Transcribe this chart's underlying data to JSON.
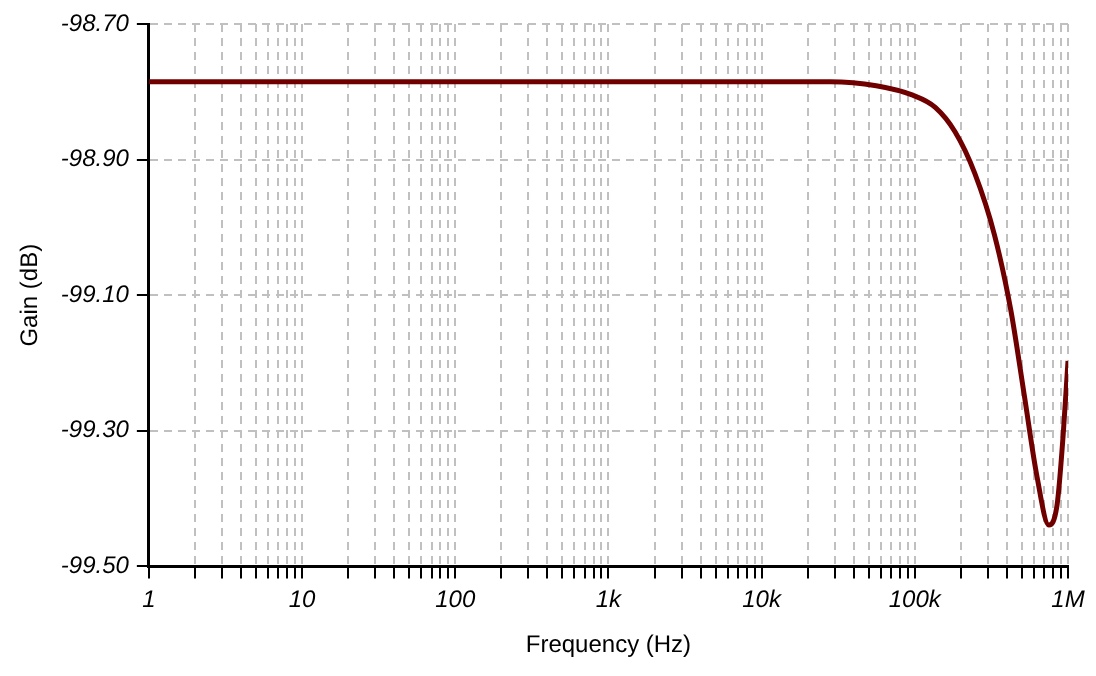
{
  "chart_data": {
    "type": "line",
    "xlabel": "Frequency (Hz)",
    "ylabel": "Gain (dB)",
    "log": "x",
    "grid": true,
    "legend": false,
    "marker": "none",
    "line_style": "solid",
    "x": [
      1,
      10,
      100,
      1000,
      10000,
      28000,
      56000,
      97000,
      136000,
      183000,
      246000,
      331000,
      424000,
      517000,
      628000,
      750000,
      850000,
      930000,
      1000000
    ],
    "series": [
      {
        "color": "#700000",
        "values": [
          -98.785,
          -98.785,
          -98.785,
          -98.785,
          -98.785,
          -98.785,
          -98.791,
          -98.805,
          -98.823,
          -98.859,
          -98.92,
          -99.011,
          -99.123,
          -99.246,
          -99.368,
          -99.439,
          -99.408,
          -99.306,
          -99.197
        ]
      }
    ],
    "xlim": [
      1,
      1000000
    ],
    "xticks": [
      {
        "value": 1,
        "label": "1"
      },
      {
        "value": 2,
        "label": null
      },
      {
        "value": 3,
        "label": null
      },
      {
        "value": 4,
        "label": null
      },
      {
        "value": 5,
        "label": null
      },
      {
        "value": 6,
        "label": null
      },
      {
        "value": 7,
        "label": null
      },
      {
        "value": 8,
        "label": null
      },
      {
        "value": 9,
        "label": null
      },
      {
        "value": 10,
        "label": "10"
      },
      {
        "value": 20,
        "label": null
      },
      {
        "value": 30,
        "label": null
      },
      {
        "value": 40,
        "label": null
      },
      {
        "value": 50,
        "label": null
      },
      {
        "value": 60,
        "label": null
      },
      {
        "value": 70,
        "label": null
      },
      {
        "value": 80,
        "label": null
      },
      {
        "value": 90,
        "label": null
      },
      {
        "value": 100,
        "label": "100"
      },
      {
        "value": 200,
        "label": null
      },
      {
        "value": 300,
        "label": null
      },
      {
        "value": 400,
        "label": null
      },
      {
        "value": 500,
        "label": null
      },
      {
        "value": 600,
        "label": null
      },
      {
        "value": 700,
        "label": null
      },
      {
        "value": 800,
        "label": null
      },
      {
        "value": 900,
        "label": null
      },
      {
        "value": 1000,
        "label": "1k"
      },
      {
        "value": 2000,
        "label": null
      },
      {
        "value": 3000,
        "label": null
      },
      {
        "value": 4000,
        "label": null
      },
      {
        "value": 5000,
        "label": null
      },
      {
        "value": 6000,
        "label": null
      },
      {
        "value": 7000,
        "label": null
      },
      {
        "value": 8000,
        "label": null
      },
      {
        "value": 9000,
        "label": null
      },
      {
        "value": 10000,
        "label": "10k"
      },
      {
        "value": 20000,
        "label": null
      },
      {
        "value": 30000,
        "label": null
      },
      {
        "value": 40000,
        "label": null
      },
      {
        "value": 50000,
        "label": null
      },
      {
        "value": 60000,
        "label": null
      },
      {
        "value": 70000,
        "label": null
      },
      {
        "value": 80000,
        "label": null
      },
      {
        "value": 90000,
        "label": null
      },
      {
        "value": 100000,
        "label": "100k"
      },
      {
        "value": 200000,
        "label": null
      },
      {
        "value": 300000,
        "label": null
      },
      {
        "value": 400000,
        "label": null
      },
      {
        "value": 500000,
        "label": null
      },
      {
        "value": 600000,
        "label": null
      },
      {
        "value": 700000,
        "label": null
      },
      {
        "value": 800000,
        "label": null
      },
      {
        "value": 900000,
        "label": null
      },
      {
        "value": 1000000,
        "label": "1M"
      }
    ],
    "ylim": [
      -99.5,
      -98.7
    ],
    "yticks": [
      {
        "value": -99.5,
        "label": "-99.50"
      },
      {
        "value": -99.3,
        "label": "-99.30"
      },
      {
        "value": -99.1,
        "label": "-99.10"
      },
      {
        "value": -98.9,
        "label": "-98.90"
      },
      {
        "value": -98.7,
        "label": "-98.70"
      }
    ]
  }
}
